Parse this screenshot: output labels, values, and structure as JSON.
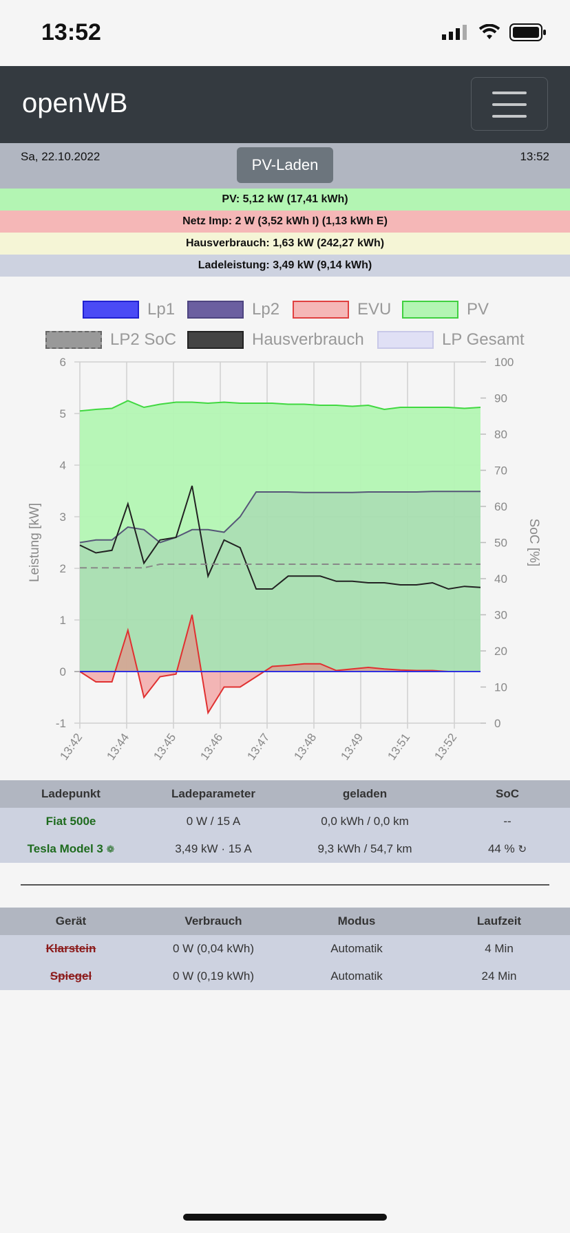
{
  "status": {
    "time": "13:52"
  },
  "navbar": {
    "brand": "openWB"
  },
  "info": {
    "date": "Sa, 22.10.2022",
    "mode_button": "PV-Laden",
    "time": "13:52"
  },
  "summary": {
    "pv": "PV: 5,12 kW (17,41 kWh)",
    "netz": "Netz Imp: 2 W (3,52 kWh I) (1,13 kWh E)",
    "haus": "Hausverbrauch: 1,63 kW (242,27 kWh)",
    "lade": "Ladeleistung: 3,49 kW (9,14 kWh)"
  },
  "colors": {
    "pv": "#b3f5b3",
    "evu": "#f5b7b7",
    "lp1": "#4a4af5",
    "lp2": "#6b5fa0",
    "haus": "#444444",
    "lpgesamt": "#e0e0f5"
  },
  "legend": [
    "Lp1",
    "Lp2",
    "EVU",
    "PV",
    "LP2 SoC",
    "Hausverbrauch",
    "LP Gesamt"
  ],
  "chart_data": {
    "type": "line",
    "ylabel": "Leistung [kW]",
    "y2label": "SoC [%]",
    "ylim": [
      -1,
      6
    ],
    "y2lim": [
      0,
      100
    ],
    "yticks": [
      "6",
      "5",
      "4",
      "3",
      "2",
      "1",
      "0",
      "-1"
    ],
    "y2ticks": [
      "100",
      "90",
      "80",
      "70",
      "60",
      "50",
      "40",
      "30",
      "20",
      "10",
      "0"
    ],
    "xticks": [
      "13:42",
      "13:44",
      "13:45",
      "13:46",
      "13:47",
      "13:48",
      "13:49",
      "13:51",
      "13:52"
    ],
    "series": [
      {
        "name": "PV",
        "values": [
          5.05,
          5.08,
          5.1,
          5.25,
          5.12,
          5.18,
          5.22,
          5.22,
          5.2,
          5.22,
          5.2,
          5.2,
          5.2,
          5.18,
          5.18,
          5.16,
          5.16,
          5.14,
          5.16,
          5.08,
          5.12,
          5.12,
          5.12,
          5.12,
          5.1,
          5.12
        ]
      },
      {
        "name": "Lp2",
        "values": [
          2.5,
          2.55,
          2.55,
          2.8,
          2.75,
          2.5,
          2.6,
          2.75,
          2.75,
          2.7,
          3.0,
          3.48,
          3.48,
          3.48,
          3.47,
          3.47,
          3.47,
          3.47,
          3.48,
          3.48,
          3.48,
          3.48,
          3.49,
          3.49,
          3.49,
          3.49
        ]
      },
      {
        "name": "EVU",
        "values": [
          0.0,
          -0.2,
          -0.2,
          0.8,
          -0.5,
          -0.1,
          -0.05,
          1.1,
          -0.8,
          -0.3,
          -0.3,
          -0.1,
          0.1,
          0.12,
          0.15,
          0.15,
          0.02,
          0.05,
          0.08,
          0.05,
          0.03,
          0.02,
          0.02,
          0.0,
          0.0,
          0.0
        ]
      },
      {
        "name": "Hausverbrauch",
        "values": [
          2.45,
          2.3,
          2.35,
          3.25,
          2.1,
          2.55,
          2.6,
          3.6,
          1.85,
          2.55,
          2.4,
          1.6,
          1.6,
          1.85,
          1.85,
          1.85,
          1.75,
          1.75,
          1.72,
          1.72,
          1.68,
          1.68,
          1.72,
          1.6,
          1.65,
          1.63
        ]
      },
      {
        "name": "LP2 SoC",
        "values": [
          43,
          43,
          43,
          43,
          43,
          44,
          44,
          44,
          44,
          44,
          44,
          44,
          44,
          44,
          44,
          44,
          44,
          44,
          44,
          44,
          44,
          44,
          44,
          44,
          44,
          44
        ]
      },
      {
        "name": "Lp1",
        "values": [
          0,
          0,
          0,
          0,
          0,
          0,
          0,
          0,
          0,
          0,
          0,
          0,
          0,
          0,
          0,
          0,
          0,
          0,
          0,
          0,
          0,
          0,
          0,
          0,
          0,
          0
        ]
      }
    ]
  },
  "lp_table": {
    "headers": [
      "Ladepunkt",
      "Ladeparameter",
      "geladen",
      "SoC"
    ],
    "rows": [
      [
        "Fiat 500e",
        "0 W / 15 A",
        "0,0 kWh / 0,0 km",
        "--"
      ],
      [
        "Tesla Model 3",
        "3,49 kW · 15 A",
        "9,3 kWh / 54,7 km",
        "44 %"
      ]
    ]
  },
  "dev_table": {
    "headers": [
      "Gerät",
      "Verbrauch",
      "Modus",
      "Laufzeit"
    ],
    "rows": [
      [
        "Klarstein",
        "0 W (0,04 kWh)",
        "Automatik",
        "4 Min"
      ],
      [
        "Spiegel",
        "0 W (0,19 kWh)",
        "Automatik",
        "24 Min"
      ]
    ]
  }
}
